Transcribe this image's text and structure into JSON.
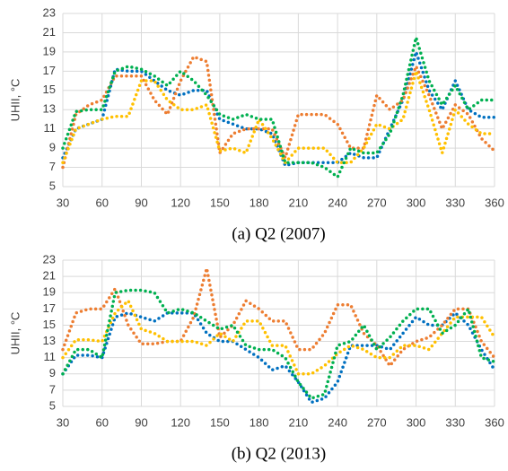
{
  "chart_data": [
    {
      "type": "line",
      "title": "(a) Q2 (2007)",
      "ylabel": "UHII, °C",
      "x": [
        30,
        40,
        50,
        60,
        70,
        80,
        90,
        100,
        110,
        120,
        130,
        140,
        150,
        160,
        170,
        180,
        190,
        200,
        210,
        220,
        230,
        240,
        250,
        260,
        270,
        280,
        290,
        300,
        310,
        320,
        330,
        340,
        350,
        360
      ],
      "xlim": [
        30,
        360
      ],
      "xticks": [
        30,
        60,
        90,
        120,
        150,
        180,
        210,
        240,
        270,
        300,
        330,
        360
      ],
      "ylim": [
        5,
        23
      ],
      "yticks": [
        5,
        7,
        9,
        11,
        13,
        15,
        17,
        19,
        21,
        23
      ],
      "grid": true,
      "series": [
        {
          "color": "#0070c0",
          "values": [
            8,
            11,
            11.5,
            12,
            17.2,
            17,
            17,
            16,
            15,
            14.5,
            15,
            15,
            12,
            11.5,
            11,
            11,
            10.5,
            7.2,
            7.5,
            7.5,
            7.5,
            7.5,
            8.5,
            8,
            8,
            11,
            14,
            19,
            15,
            13,
            16,
            13,
            12.2,
            12.2
          ]
        },
        {
          "color": "#ed7d31",
          "values": [
            7,
            12.5,
            13.5,
            14,
            16.5,
            16.5,
            16.5,
            14,
            12.5,
            16,
            18.5,
            18,
            8.5,
            10.5,
            11,
            11,
            11,
            8,
            12.5,
            12.5,
            12.5,
            11.5,
            9,
            9,
            14.5,
            13,
            14,
            17.5,
            14.5,
            11,
            13.5,
            12.5,
            10,
            8.7
          ]
        },
        {
          "color": "#ffc000",
          "values": [
            7.5,
            11,
            11.5,
            12,
            12.3,
            12.3,
            16,
            16,
            14,
            13,
            13,
            13.5,
            8.7,
            9,
            8.5,
            12,
            10,
            7.5,
            9,
            9,
            9,
            7.5,
            7.5,
            9,
            11.5,
            11,
            12,
            17,
            13,
            8.5,
            13,
            11.5,
            10.5,
            10.5
          ]
        },
        {
          "color": "#00b050",
          "values": [
            9,
            12.8,
            13,
            13,
            17,
            17.5,
            17.2,
            16.5,
            15.5,
            17,
            16,
            14.5,
            12.5,
            12,
            12.5,
            12,
            12,
            7.5,
            7.5,
            7.5,
            7,
            6,
            9,
            8.5,
            8.5,
            10.5,
            14.5,
            20.5,
            16,
            13.5,
            15.5,
            13,
            14,
            14
          ]
        }
      ]
    },
    {
      "type": "line",
      "title": "(b) Q2 (2013)",
      "ylabel": "UHII, °C",
      "x": [
        30,
        40,
        50,
        60,
        70,
        80,
        90,
        100,
        110,
        120,
        130,
        140,
        150,
        160,
        170,
        180,
        190,
        200,
        210,
        220,
        230,
        240,
        250,
        260,
        270,
        280,
        290,
        300,
        310,
        320,
        330,
        340,
        350,
        360
      ],
      "xlim": [
        30,
        360
      ],
      "xticks": [
        30,
        60,
        90,
        120,
        150,
        180,
        210,
        240,
        270,
        300,
        330,
        360
      ],
      "ylim": [
        5,
        23
      ],
      "yticks": [
        5,
        7,
        9,
        11,
        13,
        15,
        17,
        19,
        21,
        23
      ],
      "grid": true,
      "series": [
        {
          "color": "#0070c0",
          "values": [
            9,
            11.3,
            11.3,
            11,
            16,
            16.5,
            16,
            15.5,
            16.5,
            16.5,
            16.5,
            14,
            13,
            13,
            12,
            11,
            9.5,
            10,
            8,
            5.5,
            6,
            8,
            12.5,
            12.5,
            12.5,
            12,
            14,
            16,
            15,
            15,
            16.5,
            15,
            12,
            9.5
          ]
        },
        {
          "color": "#ed7d31",
          "values": [
            12,
            16.5,
            17,
            17,
            19.5,
            15,
            12.7,
            12.7,
            13,
            13,
            16,
            22,
            13.5,
            15,
            18,
            17,
            15.5,
            15.5,
            12,
            12,
            14,
            17.5,
            17.5,
            14,
            12.5,
            10,
            12,
            13,
            13.5,
            15,
            17,
            17,
            13,
            11
          ]
        },
        {
          "color": "#ffc000",
          "values": [
            11,
            13.2,
            13.2,
            13,
            16.5,
            18,
            14.5,
            14,
            13,
            13,
            13,
            12.5,
            14,
            13,
            15.5,
            15.5,
            12.5,
            12.5,
            9,
            9,
            10,
            11.5,
            12.5,
            12,
            11,
            11,
            12.5,
            12.5,
            12,
            14,
            16,
            16,
            16,
            13.5
          ]
        },
        {
          "color": "#00b050",
          "values": [
            9,
            12,
            12,
            11,
            19,
            19.3,
            19.3,
            19,
            16.5,
            17,
            16.5,
            15.5,
            14.5,
            15,
            12.5,
            12,
            12,
            11,
            8,
            6,
            6.5,
            12.5,
            13,
            15,
            12,
            13.5,
            15.5,
            17,
            17,
            14,
            15,
            17,
            11,
            10.5
          ]
        }
      ]
    }
  ]
}
